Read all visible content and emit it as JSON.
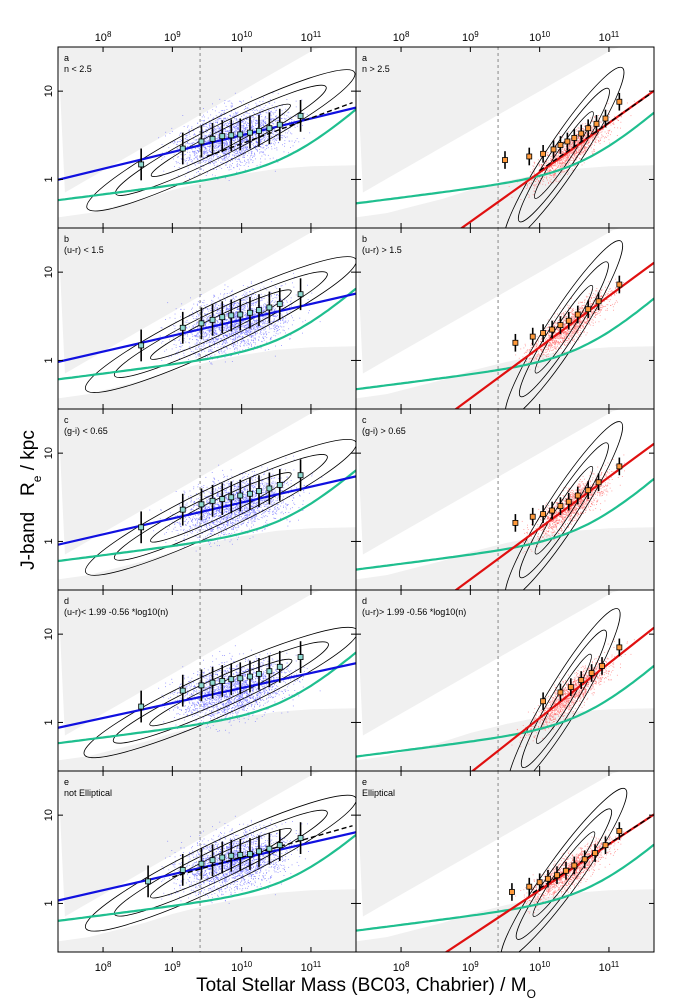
{
  "chart_data": {
    "type": "scatter",
    "xlabel": "Total Stellar Mass (BC03, Chabrier) / M",
    "xlabel_subscript": "O",
    "ylabel": "J-band   R",
    "ylabel_subscript": "e",
    "ylabel_unit": " / kpc",
    "xscale": "log",
    "yscale": "log",
    "xlim_log10": [
      7.35,
      11.65
    ],
    "ylim_log10": [
      -0.55,
      1.5
    ],
    "x_ticks": [
      {
        "label": "10",
        "power": "8",
        "log": 8
      },
      {
        "label": "10",
        "power": "9",
        "log": 9
      },
      {
        "label": "10",
        "power": "10",
        "log": 10
      },
      {
        "label": "10",
        "power": "11",
        "log": 11
      }
    ],
    "y_ticks": [
      {
        "label": "1",
        "log": 0
      },
      {
        "label": "10",
        "log": 1
      }
    ],
    "vline_log10_mass": 9.4,
    "colors": {
      "late": "#1010e0",
      "late_points": "#6b6bff",
      "early": "#e01010",
      "early_points": "#ff7070",
      "fit": "#1fbf8f",
      "contour": "#000000",
      "excluded": "#f0f0f0"
    },
    "rows": [
      {
        "letter": "a",
        "left": {
          "criterion": "n < 2.5",
          "population": "late",
          "fit_line": {
            "slope": 0.19,
            "intercept": -1.4
          },
          "green_curve": {
            "a": 1.05,
            "b": 0.88,
            "xp": 10.7
          },
          "dashed_fit": {
            "x": [
              9.5,
              11.6
            ],
            "y": [
              0.26,
              0.87
            ]
          },
          "binned_medians": {
            "log_mass": [
              8.55,
              9.15,
              9.42,
              9.58,
              9.72,
              9.85,
              9.98,
              10.12,
              10.25,
              10.4,
              10.55,
              10.85
            ],
            "log_re": [
              0.17,
              0.35,
              0.43,
              0.46,
              0.49,
              0.5,
              0.51,
              0.53,
              0.55,
              0.58,
              0.62,
              0.72
            ]
          }
        },
        "right": {
          "criterion": "n > 2.5",
          "population": "early",
          "fit_line": {
            "slope": 0.56,
            "intercept": -5.52
          },
          "green_curve": {
            "a": 1.02,
            "b": 0.8,
            "xp": 10.7
          },
          "dashed_fit": {
            "x": [
              10.0,
              11.6
            ],
            "y": [
              0.1,
              0.97
            ]
          },
          "binned_medians": {
            "log_mass": [
              9.5,
              9.85,
              10.05,
              10.2,
              10.3,
              10.4,
              10.5,
              10.6,
              10.7,
              10.82,
              10.95,
              11.15
            ],
            "log_re": [
              0.22,
              0.26,
              0.29,
              0.34,
              0.39,
              0.43,
              0.47,
              0.52,
              0.58,
              0.63,
              0.69,
              0.88
            ]
          }
        }
      },
      {
        "letter": "b",
        "left": {
          "criterion": "(u-r) < 1.5",
          "population": "late",
          "fit_line": {
            "slope": 0.18,
            "intercept": -1.34
          },
          "green_curve": {
            "a": 1.14,
            "b": 0.83,
            "xp": 10.7
          },
          "binned_medians": {
            "log_mass": [
              8.55,
              9.15,
              9.42,
              9.58,
              9.72,
              9.85,
              9.98,
              10.12,
              10.25,
              10.4,
              10.55,
              10.85
            ],
            "log_re": [
              0.17,
              0.37,
              0.42,
              0.46,
              0.49,
              0.51,
              0.52,
              0.54,
              0.57,
              0.6,
              0.64,
              0.75
            ]
          }
        },
        "right": {
          "criterion": "(u-r) > 1.5",
          "population": "early",
          "fit_line": {
            "slope": 0.58,
            "intercept": -5.65
          },
          "green_curve": {
            "a": 0.95,
            "b": 0.72,
            "xp": 10.7
          },
          "binned_medians": {
            "log_mass": [
              9.65,
              9.9,
              10.05,
              10.18,
              10.3,
              10.42,
              10.55,
              10.7,
              10.85,
              11.15
            ],
            "log_re": [
              0.2,
              0.27,
              0.31,
              0.35,
              0.4,
              0.45,
              0.52,
              0.58,
              0.67,
              0.86
            ]
          }
        }
      },
      {
        "letter": "c",
        "left": {
          "criterion": "(g-i) < 0.65",
          "population": "late",
          "fit_line": {
            "slope": 0.18,
            "intercept": -1.36
          },
          "green_curve": {
            "a": 1.12,
            "b": 0.83,
            "xp": 10.7
          },
          "binned_medians": {
            "log_mass": [
              8.55,
              9.15,
              9.42,
              9.58,
              9.72,
              9.85,
              9.98,
              10.12,
              10.25,
              10.4,
              10.55,
              10.85
            ],
            "log_re": [
              0.16,
              0.36,
              0.42,
              0.46,
              0.48,
              0.5,
              0.52,
              0.54,
              0.57,
              0.6,
              0.64,
              0.75
            ]
          }
        },
        "right": {
          "criterion": "(g-i) > 0.65",
          "population": "early",
          "fit_line": {
            "slope": 0.58,
            "intercept": -5.65
          },
          "green_curve": {
            "a": 0.96,
            "b": 0.73,
            "xp": 10.7
          },
          "binned_medians": {
            "log_mass": [
              9.65,
              9.9,
              10.05,
              10.18,
              10.3,
              10.42,
              10.55,
              10.7,
              10.85,
              11.15
            ],
            "log_re": [
              0.21,
              0.28,
              0.31,
              0.35,
              0.4,
              0.45,
              0.52,
              0.58,
              0.67,
              0.85
            ]
          }
        }
      },
      {
        "letter": "d",
        "left": {
          "criterion": "(u-r)< 1.99 -0.56 *log10(n)",
          "population": "late",
          "fit_line": {
            "slope": 0.17,
            "intercept": -1.31
          },
          "green_curve": {
            "a": 1.07,
            "b": 0.85,
            "xp": 10.7
          },
          "binned_medians": {
            "log_mass": [
              8.55,
              9.15,
              9.42,
              9.58,
              9.72,
              9.85,
              9.98,
              10.12,
              10.25,
              10.4,
              10.55,
              10.85
            ],
            "log_re": [
              0.18,
              0.36,
              0.42,
              0.45,
              0.47,
              0.49,
              0.5,
              0.52,
              0.55,
              0.58,
              0.63,
              0.74
            ]
          }
        },
        "right": {
          "criterion": "(u-r)> 1.99 -0.56 *log10(n)",
          "population": "early",
          "fit_line": {
            "slope": 0.62,
            "intercept": -6.15
          },
          "green_curve": {
            "a": 0.85,
            "b": 0.68,
            "xp": 10.7
          },
          "binned_medians": {
            "log_mass": [
              10.05,
              10.3,
              10.45,
              10.6,
              10.75,
              10.9,
              11.15
            ],
            "log_re": [
              0.24,
              0.34,
              0.4,
              0.48,
              0.56,
              0.64,
              0.85
            ]
          }
        }
      },
      {
        "letter": "e",
        "left": {
          "criterion": "not Elliptical",
          "population": "late",
          "fit_line": {
            "slope": 0.18,
            "intercept": -1.29
          },
          "green_curve": {
            "a": 1.16,
            "b": 0.86,
            "xp": 10.8
          },
          "dashed_fit": {
            "x": [
              9.0,
              11.6
            ],
            "y": [
              0.3,
              0.88
            ]
          },
          "binned_medians": {
            "log_mass": [
              8.65,
              9.15,
              9.42,
              9.58,
              9.72,
              9.85,
              9.98,
              10.12,
              10.25,
              10.4,
              10.55,
              10.85
            ],
            "log_re": [
              0.25,
              0.38,
              0.45,
              0.49,
              0.52,
              0.54,
              0.55,
              0.56,
              0.59,
              0.62,
              0.66,
              0.74
            ]
          }
        },
        "right": {
          "criterion": "Elliptical",
          "population": "early",
          "fit_line": {
            "slope": 0.52,
            "intercept": -5.05
          },
          "green_curve": {
            "a": 0.95,
            "b": 0.78,
            "xp": 10.8
          },
          "dashed_fit": {
            "x": [
              9.9,
              11.6
            ],
            "y": [
              0.12,
              0.98
            ]
          },
          "binned_medians": {
            "log_mass": [
              9.6,
              9.85,
              10.0,
              10.12,
              10.25,
              10.38,
              10.5,
              10.65,
              10.8,
              10.95,
              11.15
            ],
            "log_re": [
              0.13,
              0.19,
              0.24,
              0.28,
              0.32,
              0.37,
              0.43,
              0.5,
              0.57,
              0.66,
              0.82
            ]
          }
        }
      }
    ]
  }
}
